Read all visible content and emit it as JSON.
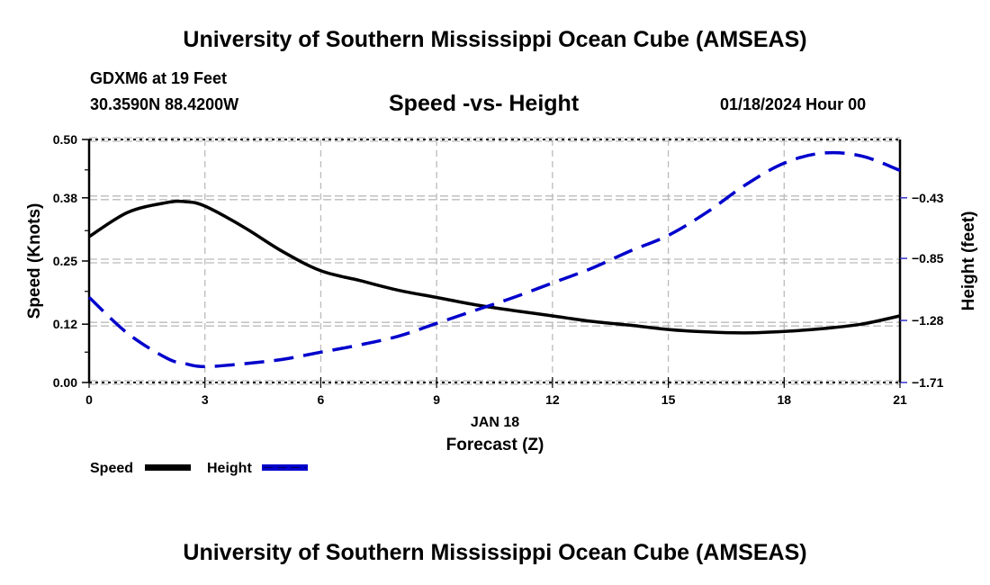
{
  "header": {
    "title": "University of Southern Mississippi Ocean Cube (AMSEAS)",
    "station": "GDXM6 at 19 Feet",
    "coords": "30.3590N  88.4200W",
    "chart_title": "Speed -vs- Height",
    "datetime": "01/18/2024 Hour 00"
  },
  "footer": {
    "title": "University of Southern Mississippi Ocean Cube (AMSEAS)"
  },
  "colors": {
    "speed": "#000000",
    "height": "#0000cc",
    "grid": "#bbbbbb"
  },
  "chart_data": {
    "type": "line",
    "title": "Speed -vs- Height",
    "xlabel": "Forecast (Z)",
    "xlabel_date": "JAN 18",
    "ylabel": "Speed (Knots)",
    "y2label": "Height (feet)",
    "x_ticks": [
      0,
      3,
      6,
      9,
      12,
      15,
      18,
      21
    ],
    "xlim": [
      0,
      21
    ],
    "ylim": [
      0.0,
      0.5
    ],
    "y_ticks": [
      0.0,
      0.12,
      0.25,
      0.38,
      0.5
    ],
    "y_tick_labels": [
      "0.00",
      "0.12",
      "0.25",
      "0.38",
      "0.50"
    ],
    "y2lim": [
      -1.71,
      -0.1
    ],
    "y2_ticks": [
      -1.71,
      -1.28,
      -0.85,
      -0.43
    ],
    "y2_tick_labels": [
      "−1.71",
      "−1.28",
      "−0.85",
      "−0.43"
    ],
    "grid": true,
    "legend_position": "bottom-left",
    "x": [
      0,
      1,
      2,
      2.5,
      3,
      4,
      5,
      6,
      7,
      8,
      9,
      10,
      11,
      12,
      13,
      14,
      15,
      16,
      17,
      18,
      19,
      20,
      21
    ],
    "series": [
      {
        "name": "Speed",
        "axis": "left",
        "style": "solid",
        "values": [
          0.3,
          0.35,
          0.37,
          0.372,
          0.363,
          0.32,
          0.27,
          0.23,
          0.21,
          0.19,
          0.175,
          0.16,
          0.148,
          0.137,
          0.126,
          0.118,
          0.109,
          0.104,
          0.102,
          0.105,
          0.111,
          0.12,
          0.137
        ]
      },
      {
        "name": "Height",
        "axis": "right",
        "style": "dashed",
        "values": [
          -1.12,
          -1.37,
          -1.54,
          -1.58,
          -1.6,
          -1.58,
          -1.55,
          -1.5,
          -1.45,
          -1.39,
          -1.3,
          -1.21,
          -1.12,
          -1.02,
          -0.92,
          -0.8,
          -0.69,
          -0.53,
          -0.34,
          -0.19,
          -0.12,
          -0.14,
          -0.24
        ]
      }
    ]
  }
}
